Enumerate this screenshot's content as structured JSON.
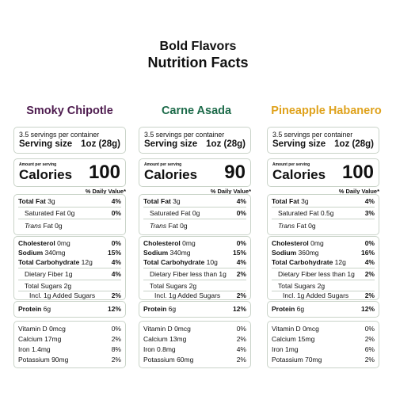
{
  "header": {
    "line1": "Bold Flavors",
    "line2": "Nutrition Facts"
  },
  "dv_label": "% Daily Value*",
  "amount_per_serving_label": "Amount per serving",
  "calories_label": "Calories",
  "products": [
    {
      "name": "Smoky Chipotle",
      "color": "#4d1b4e",
      "servings_per_container": "3.5 servings per container",
      "serving_size_label": "Serving size",
      "serving_size_value": "1oz (28g)",
      "calories": "100",
      "total_fat": {
        "label": "Total Fat",
        "amount": "3g",
        "pct": "4%"
      },
      "saturated_fat": {
        "label": "Saturated Fat",
        "amount": "0g",
        "pct": "0%"
      },
      "trans_fat": {
        "label": "Trans",
        "label2": "Fat",
        "amount": "0g"
      },
      "cholesterol": {
        "label": "Cholesterol",
        "amount": "0mg",
        "pct": "0%"
      },
      "sodium": {
        "label": "Sodium",
        "amount": "340mg",
        "pct": "15%"
      },
      "total_carb": {
        "label": "Total Carbohydrate",
        "amount": "12g",
        "pct": "4%"
      },
      "dietary_fiber": {
        "label": "Dietary Fiber",
        "amount": "1g",
        "pct": "4%"
      },
      "total_sugars": {
        "label": "Total Sugars",
        "amount": "2g"
      },
      "added_sugars": {
        "label": "Incl. 1g Added Sugars",
        "pct": "2%"
      },
      "protein": {
        "label": "Protein",
        "amount": "6g",
        "pct": "12%"
      },
      "vitamin_d": {
        "label": "Vitamin D",
        "amount": "0mcg",
        "pct": "0%"
      },
      "calcium": {
        "label": "Calcium",
        "amount": "17mg",
        "pct": "2%"
      },
      "iron": {
        "label": "Iron",
        "amount": "1.4mg",
        "pct": "8%"
      },
      "potassium": {
        "label": "Potassium",
        "amount": "90mg",
        "pct": "2%"
      }
    },
    {
      "name": "Carne Asada",
      "color": "#1d6b4a",
      "servings_per_container": "3.5 servings per container",
      "serving_size_label": "Serving size",
      "serving_size_value": "1oz (28g)",
      "calories": "90",
      "total_fat": {
        "label": "Total Fat",
        "amount": "3g",
        "pct": "4%"
      },
      "saturated_fat": {
        "label": "Saturated Fat",
        "amount": "0g",
        "pct": "0%"
      },
      "trans_fat": {
        "label": "Trans",
        "label2": "Fat",
        "amount": "0g"
      },
      "cholesterol": {
        "label": "Cholesterol",
        "amount": "0mg",
        "pct": "0%"
      },
      "sodium": {
        "label": "Sodium",
        "amount": "340mg",
        "pct": "15%"
      },
      "total_carb": {
        "label": "Total Carbohydrate",
        "amount": "10g",
        "pct": "4%"
      },
      "dietary_fiber": {
        "label": "Dietary Fiber",
        "amount": "less than 1g",
        "pct": "2%"
      },
      "total_sugars": {
        "label": "Total Sugars",
        "amount": "2g"
      },
      "added_sugars": {
        "label": "Incl. 1g Added Sugars",
        "pct": "2%"
      },
      "protein": {
        "label": "Protein",
        "amount": "6g",
        "pct": "12%"
      },
      "vitamin_d": {
        "label": "Vitamin D",
        "amount": "0mcg",
        "pct": "0%"
      },
      "calcium": {
        "label": "Calcium",
        "amount": "13mg",
        "pct": "2%"
      },
      "iron": {
        "label": "Iron",
        "amount": "0.8mg",
        "pct": "4%"
      },
      "potassium": {
        "label": "Potassium",
        "amount": "60mg",
        "pct": "2%"
      }
    },
    {
      "name": "Pineapple Habanero",
      "color": "#dfa21c",
      "servings_per_container": "3.5 servings per container",
      "serving_size_label": "Serving size",
      "serving_size_value": "1oz (28g)",
      "calories": "100",
      "total_fat": {
        "label": "Total Fat",
        "amount": "3g",
        "pct": "4%"
      },
      "saturated_fat": {
        "label": "Saturated Fat",
        "amount": "0.5g",
        "pct": "3%"
      },
      "trans_fat": {
        "label": "Trans",
        "label2": "Fat",
        "amount": "0g"
      },
      "cholesterol": {
        "label": "Cholesterol",
        "amount": "0mg",
        "pct": "0%"
      },
      "sodium": {
        "label": "Sodium",
        "amount": "360mg",
        "pct": "16%"
      },
      "total_carb": {
        "label": "Total Carbohydrate",
        "amount": "12g",
        "pct": "4%"
      },
      "dietary_fiber": {
        "label": "Dietary Fiber",
        "amount": "less than 1g",
        "pct": "2%"
      },
      "total_sugars": {
        "label": "Total Sugars",
        "amount": "2g"
      },
      "added_sugars": {
        "label": "Incl. 1g Added Sugars",
        "pct": "2%"
      },
      "protein": {
        "label": "Protein",
        "amount": "6g",
        "pct": "12%"
      },
      "vitamin_d": {
        "label": "Vitamin D",
        "amount": "0mcg",
        "pct": "0%"
      },
      "calcium": {
        "label": "Calcium",
        "amount": "15mg",
        "pct": "2%"
      },
      "iron": {
        "label": "Iron",
        "amount": "1mg",
        "pct": "6%"
      },
      "potassium": {
        "label": "Potassium",
        "amount": "70mg",
        "pct": "2%"
      }
    }
  ]
}
